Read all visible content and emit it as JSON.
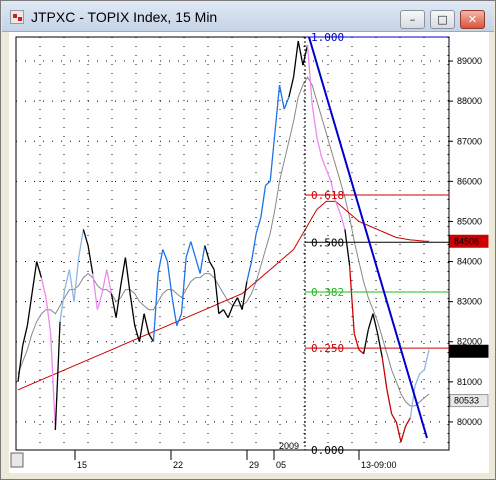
{
  "window": {
    "title": "JTPXC - TOPIX Index, 15 Min",
    "minimize_label": "–",
    "maximize_label": "□",
    "close_label": "✕"
  },
  "chart_data": {
    "type": "line",
    "title": "JTPXC - TOPIX Index, 15 Min",
    "price_axis": {
      "ticks": [
        "89000",
        "88000",
        "87000",
        "86000",
        "85000",
        "84000",
        "83000",
        "82000",
        "81000",
        "80000"
      ],
      "range": [
        79300,
        89600
      ],
      "grid": true
    },
    "time_axis": {
      "ticks": [
        "15",
        "22",
        "29",
        "05",
        "13-09:00"
      ],
      "year_label": "2009"
    },
    "price_labels": [
      {
        "text": "84506",
        "value": 84506,
        "color": "#cc0000"
      },
      {
        "text": "81763",
        "value": 81763,
        "color": "#000000"
      },
      {
        "text": "80533",
        "value": 80533,
        "color": "#e8e8e8"
      }
    ],
    "fibonacci": {
      "levels": [
        {
          "label": "1.000",
          "value": 89600,
          "color": "#0000cc"
        },
        {
          "label": "0.618",
          "value": 85660,
          "color": "#cc0000"
        },
        {
          "label": "0.500",
          "value": 84480,
          "color": "#000000"
        },
        {
          "label": "0.382",
          "value": 83240,
          "color": "#22bb22"
        },
        {
          "label": "0.250",
          "value": 81840,
          "color": "#cc0000"
        },
        {
          "label": "0.000",
          "value": 79300,
          "color": "#000000"
        }
      ]
    },
    "series": [
      {
        "color_segments": [
          "#000000",
          "#1e73e8",
          "#8fb6e0",
          "#ee88ee",
          "#cc0000"
        ],
        "values": [
          81000,
          81900,
          82400,
          83200,
          84000,
          83600,
          83100,
          82200,
          79800,
          82500,
          83300,
          83800,
          83000,
          84100,
          84800,
          84400,
          83700,
          82800,
          83200,
          83800,
          83200,
          82600,
          83400,
          84100,
          83200,
          82400,
          82000,
          82700,
          82200,
          82000,
          83700,
          84300,
          84000,
          83100,
          82400,
          82700,
          84100,
          84500,
          84100,
          83700,
          84400,
          84000,
          83800,
          82700,
          82800,
          82600,
          82900,
          83100,
          82800,
          83500,
          84000,
          84700,
          85100,
          85900,
          86000,
          87200,
          88400,
          87800,
          88100,
          88600,
          89500,
          88900,
          89400,
          87900,
          87100,
          86600,
          86300,
          86000,
          85500,
          85200,
          84800,
          83900,
          82200,
          81800,
          81700,
          82300,
          82700,
          82200,
          81600,
          80800,
          80200,
          80000,
          79500,
          79900,
          80100,
          80900,
          81200,
          81300,
          81800
        ]
      },
      {
        "name": "",
        "color": "#888888",
        "values": [
          81200,
          81500,
          81800,
          82200,
          82500,
          82700,
          82800,
          82800,
          82700,
          82900,
          83100,
          83300,
          83300,
          83400,
          83600,
          83700,
          83600,
          83400,
          83300,
          83300,
          83200,
          83000,
          83100,
          83300,
          83300,
          83200,
          83000,
          82900,
          82800,
          82800,
          83000,
          83200,
          83300,
          83300,
          83200,
          83100,
          83300,
          83500,
          83600,
          83600,
          83700,
          83700,
          83600,
          83400,
          83200,
          83000,
          82900,
          82900,
          82900,
          83000,
          83200,
          83500,
          83900,
          84300,
          84700,
          85300,
          86000,
          86500,
          87000,
          87500,
          88100,
          88400,
          88600,
          88400,
          88000,
          87600,
          87200,
          86800,
          86400,
          86000,
          85600,
          85100,
          84500,
          84000,
          83500,
          83100,
          82800,
          82500,
          82100,
          81700,
          81300,
          81000,
          80700,
          80500,
          80400,
          80400,
          80500,
          80600,
          80700
        ]
      },
      {
        "name": "",
        "color": "#cc0000",
        "values": [
          80800,
          80850,
          80900,
          80950,
          81000,
          81050,
          81100,
          81150,
          81200,
          81250,
          81300,
          81350,
          81400,
          81450,
          81500,
          81550,
          81600,
          81650,
          81700,
          81750,
          81800,
          81850,
          81900,
          81950,
          82000,
          82050,
          82100,
          82150,
          82200,
          82250,
          82300,
          82350,
          82400,
          82450,
          82500,
          82550,
          82600,
          82650,
          82700,
          82750,
          82800,
          82850,
          82900,
          82950,
          83000,
          83050,
          83100,
          83150,
          83200,
          83300,
          83400,
          83500,
          83600,
          83700,
          83800,
          83900,
          84000,
          84100,
          84200,
          84300,
          84500,
          84700,
          84900,
          85100,
          85300,
          85400,
          85500,
          85500,
          85500,
          85400,
          85300,
          85200,
          85100,
          85000,
          84950,
          84900,
          84850,
          84800,
          84750,
          84700,
          84650,
          84600,
          84580,
          84560,
          84540,
          84530,
          84520,
          84510,
          84506
        ]
      }
    ],
    "trendline": {
      "color": "#0000cc",
      "from": 89600,
      "to": 79600
    }
  }
}
